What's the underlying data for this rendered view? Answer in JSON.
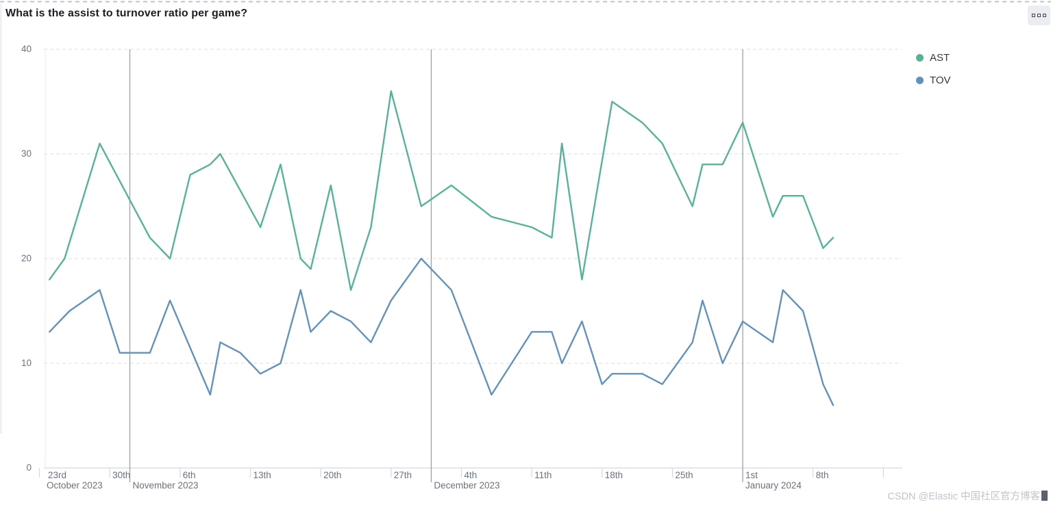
{
  "header": {
    "title": "What is the assist to turnover ratio per game?"
  },
  "panel": {
    "options_icon": "boxes-horizontal-icon"
  },
  "watermark": {
    "text": "CSDN @Elastic 中国社区官方博客"
  },
  "chart_data": {
    "type": "line",
    "title": "What is the assist to turnover ratio per game?",
    "x_unit": "days since 2023-10-23 (per-game dates)",
    "x_axis": {
      "tick_labels": [
        "23rd",
        "30th",
        "6th",
        "13th",
        "20th",
        "27th",
        "4th",
        "11th",
        "18th",
        "25th",
        "1st",
        "8th"
      ],
      "tick_days": [
        0,
        7,
        14,
        21,
        28,
        35,
        42,
        49,
        56,
        63,
        70,
        77
      ],
      "tick_mark_days": [
        0,
        7,
        14,
        21,
        28,
        35,
        42,
        49,
        56,
        63,
        70,
        77,
        84
      ],
      "month_labels": [
        {
          "label": "October 2023",
          "day": 0
        },
        {
          "label": "November 2023",
          "day": 9
        },
        {
          "label": "December 2023",
          "day": 39
        },
        {
          "label": "January 2024",
          "day": 70
        }
      ],
      "month_boundary_days": [
        9,
        39,
        70
      ]
    },
    "y_axis": {
      "tick_values": [
        0,
        10,
        20,
        30,
        40
      ],
      "range": [
        0,
        40
      ]
    },
    "grid": true,
    "legend_position": "right",
    "series": [
      {
        "name": "AST",
        "color": "#54B399",
        "points": [
          [
            1,
            18
          ],
          [
            2.5,
            20
          ],
          [
            6,
            31
          ],
          [
            11,
            22
          ],
          [
            13,
            20
          ],
          [
            15,
            28
          ],
          [
            17,
            29
          ],
          [
            18,
            30
          ],
          [
            22,
            23
          ],
          [
            24,
            29
          ],
          [
            26,
            20
          ],
          [
            27,
            19
          ],
          [
            29,
            27
          ],
          [
            31,
            17
          ],
          [
            33,
            23
          ],
          [
            35,
            36
          ],
          [
            38,
            25
          ],
          [
            41,
            27
          ],
          [
            45,
            24
          ],
          [
            49,
            23
          ],
          [
            51,
            22
          ],
          [
            52,
            31
          ],
          [
            54,
            18
          ],
          [
            57,
            35
          ],
          [
            60,
            33
          ],
          [
            62,
            31
          ],
          [
            65,
            25
          ],
          [
            66,
            29
          ],
          [
            68,
            29
          ],
          [
            70,
            33
          ],
          [
            73,
            24
          ],
          [
            74,
            26
          ],
          [
            76,
            26
          ],
          [
            78,
            21
          ],
          [
            79,
            22
          ]
        ]
      },
      {
        "name": "TOV",
        "color": "#6092C0",
        "points": [
          [
            1,
            13
          ],
          [
            3,
            15
          ],
          [
            6,
            17
          ],
          [
            8,
            11
          ],
          [
            11,
            11
          ],
          [
            13,
            16
          ],
          [
            17,
            7
          ],
          [
            18,
            12
          ],
          [
            20,
            11
          ],
          [
            22,
            9
          ],
          [
            24,
            10
          ],
          [
            26,
            17
          ],
          [
            27,
            13
          ],
          [
            29,
            15
          ],
          [
            31,
            14
          ],
          [
            33,
            12
          ],
          [
            35,
            16
          ],
          [
            38,
            20
          ],
          [
            41,
            17
          ],
          [
            45,
            7
          ],
          [
            49,
            13
          ],
          [
            51,
            13
          ],
          [
            52,
            10
          ],
          [
            54,
            14
          ],
          [
            56,
            8
          ],
          [
            57,
            9
          ],
          [
            60,
            9
          ],
          [
            62,
            8
          ],
          [
            65,
            12
          ],
          [
            66,
            16
          ],
          [
            68,
            10
          ],
          [
            70,
            14
          ],
          [
            73,
            12
          ],
          [
            74,
            17
          ],
          [
            76,
            15
          ],
          [
            78,
            8
          ],
          [
            79,
            6
          ]
        ]
      }
    ]
  }
}
